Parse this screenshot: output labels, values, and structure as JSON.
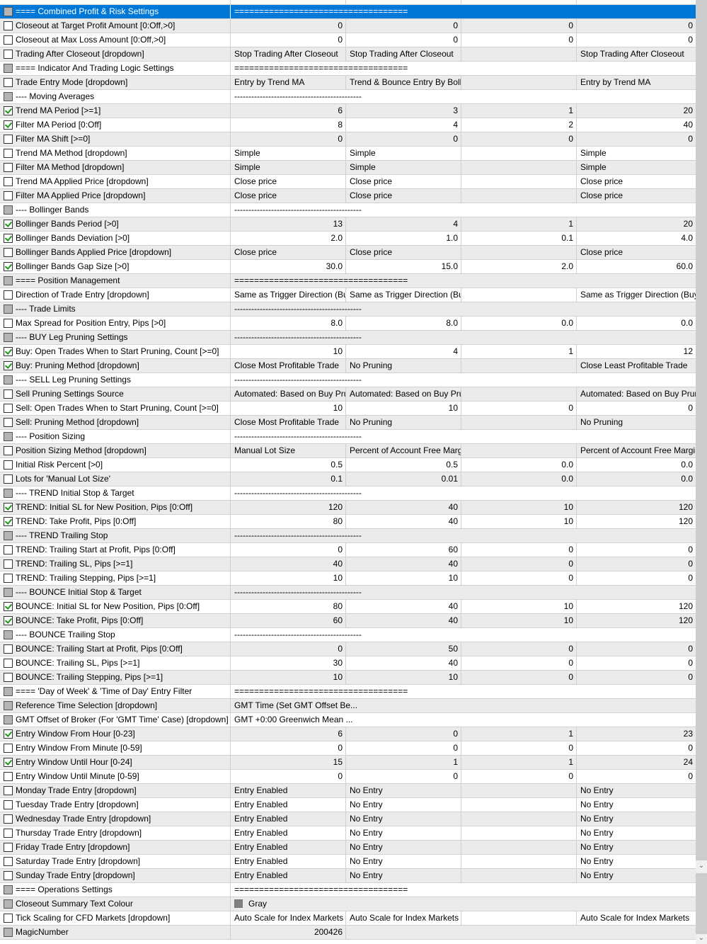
{
  "rows": [
    {
      "label": "==== Combined Profit & Risk Settings",
      "check": "disabled",
      "span": "===================================",
      "selected": true
    },
    {
      "label": "Closeout at Target Profit Amount [0:Off,>0]",
      "check": "unchecked",
      "values": [
        "0",
        "0",
        "0",
        "0"
      ]
    },
    {
      "label": "Closeout at Max Loss Amount [0:Off,>0]",
      "check": "unchecked",
      "values": [
        "0",
        "0",
        "0",
        "0"
      ]
    },
    {
      "label": "Trading After Closeout [dropdown]",
      "check": "unchecked",
      "values": [
        "Stop Trading After Closeout",
        "Stop Trading After Closeout",
        "",
        "Stop Trading After Closeout"
      ]
    },
    {
      "label": "==== Indicator And Trading Logic Settings",
      "check": "disabled",
      "span": "==================================="
    },
    {
      "label": "Trade Entry Mode [dropdown]",
      "check": "unchecked",
      "values": [
        "Entry by Trend MA",
        "Trend & Bounce Entry By Bolli...",
        "",
        "Entry by Trend MA"
      ]
    },
    {
      "label": "---- Moving Averages",
      "check": "disabled",
      "span": "---------------------------------------------"
    },
    {
      "label": "Trend MA Period [>=1]",
      "check": "checked",
      "values": [
        "6",
        "3",
        "1",
        "20"
      ]
    },
    {
      "label": "Filter MA Period [0:Off]",
      "check": "checked",
      "values": [
        "8",
        "4",
        "2",
        "40"
      ]
    },
    {
      "label": "Filter MA Shift [>=0]",
      "check": "unchecked",
      "values": [
        "0",
        "0",
        "0",
        "0"
      ]
    },
    {
      "label": "Trend MA Method [dropdown]",
      "check": "unchecked",
      "values": [
        "Simple",
        "Simple",
        "",
        "Simple"
      ]
    },
    {
      "label": "Filter MA Method [dropdown]",
      "check": "unchecked",
      "values": [
        "Simple",
        "Simple",
        "",
        "Simple"
      ]
    },
    {
      "label": "Trend MA Applied Price [dropdown]",
      "check": "unchecked",
      "values": [
        "Close price",
        "Close price",
        "",
        "Close price"
      ]
    },
    {
      "label": "Filter MA Applied Price [dropdown]",
      "check": "unchecked",
      "values": [
        "Close price",
        "Close price",
        "",
        "Close price"
      ]
    },
    {
      "label": "---- Bollinger Bands",
      "check": "disabled",
      "span": "---------------------------------------------"
    },
    {
      "label": "Bollinger Bands Period [>0]",
      "check": "checked",
      "values": [
        "13",
        "4",
        "1",
        "20"
      ]
    },
    {
      "label": "Bollinger Bands Deviation [>0]",
      "check": "checked",
      "values": [
        "2.0",
        "1.0",
        "0.1",
        "4.0"
      ]
    },
    {
      "label": "Bollinger Bands Applied Price [dropdown]",
      "check": "unchecked",
      "values": [
        "Close price",
        "Close price",
        "",
        "Close price"
      ]
    },
    {
      "label": "Bollinger Bands Gap Size [>0]",
      "check": "checked",
      "values": [
        "30.0",
        "15.0",
        "2.0",
        "60.0"
      ]
    },
    {
      "label": "==== Position Management",
      "check": "disabled",
      "span": "==================================="
    },
    {
      "label": "Direction of Trade Entry [dropdown]",
      "check": "unchecked",
      "values": [
        "Same as Trigger Direction (Buy...",
        "Same as Trigger Direction (Buy...",
        "",
        "Same as Trigger Direction (Buy ..."
      ]
    },
    {
      "label": "---- Trade Limits",
      "check": "disabled",
      "span": "---------------------------------------------"
    },
    {
      "label": "Max Spread for Position Entry, Pips [>0]",
      "check": "unchecked",
      "values": [
        "8.0",
        "8.0",
        "0.0",
        "0.0"
      ]
    },
    {
      "label": "---- BUY Leg Pruning Settings",
      "check": "disabled",
      "span": "---------------------------------------------"
    },
    {
      "label": "Buy: Open Trades When to Start Pruning, Count [>=0]",
      "check": "checked",
      "values": [
        "10",
        "4",
        "1",
        "12"
      ]
    },
    {
      "label": "Buy: Pruning Method [dropdown]",
      "check": "checked",
      "values": [
        "Close Most Profitable Trade",
        "No Pruning",
        "",
        "Close Least Profitable Trade"
      ]
    },
    {
      "label": "---- SELL Leg Pruning Settings",
      "check": "disabled",
      "span": "---------------------------------------------"
    },
    {
      "label": "Sell Pruning Settings Source",
      "check": "unchecked",
      "values": [
        "Automated: Based on Buy Pru...",
        "Automated: Based on Buy Pru...",
        "",
        "Automated: Based on Buy Pruni..."
      ]
    },
    {
      "label": "Sell: Open Trades When to Start Pruning, Count [>=0]",
      "check": "unchecked",
      "values": [
        "10",
        "10",
        "0",
        "0"
      ]
    },
    {
      "label": "Sell: Pruning Method [dropdown]",
      "check": "unchecked",
      "values": [
        "Close Most Profitable Trade",
        "No Pruning",
        "",
        "No Pruning"
      ]
    },
    {
      "label": "---- Position Sizing",
      "check": "disabled",
      "span": "---------------------------------------------"
    },
    {
      "label": "Position Sizing Method [dropdown]",
      "check": "unchecked",
      "values": [
        "Manual Lot Size",
        "Percent of Account Free Margin",
        "",
        "Percent of Account Free Margin"
      ]
    },
    {
      "label": "Initial Risk Percent [>0]",
      "check": "unchecked",
      "values": [
        "0.5",
        "0.5",
        "0.0",
        "0.0"
      ]
    },
    {
      "label": "Lots for 'Manual Lot Size'",
      "check": "unchecked",
      "values": [
        "0.1",
        "0.01",
        "0.0",
        "0.0"
      ]
    },
    {
      "label": "---- TREND Initial Stop & Target",
      "check": "disabled",
      "span": "---------------------------------------------"
    },
    {
      "label": "TREND: Initial SL for New Position, Pips [0:Off]",
      "check": "checked",
      "values": [
        "120",
        "40",
        "10",
        "120"
      ]
    },
    {
      "label": "TREND: Take Profit, Pips [0:Off]",
      "check": "checked",
      "values": [
        "80",
        "40",
        "10",
        "120"
      ]
    },
    {
      "label": "---- TREND Trailing Stop",
      "check": "disabled",
      "span": "---------------------------------------------"
    },
    {
      "label": "TREND: Trailing Start at Profit, Pips [0:Off]",
      "check": "unchecked",
      "values": [
        "0",
        "60",
        "0",
        "0"
      ]
    },
    {
      "label": "TREND: Trailing SL, Pips [>=1]",
      "check": "unchecked",
      "values": [
        "40",
        "40",
        "0",
        "0"
      ]
    },
    {
      "label": "TREND: Trailing Stepping, Pips [>=1]",
      "check": "unchecked",
      "values": [
        "10",
        "10",
        "0",
        "0"
      ]
    },
    {
      "label": "---- BOUNCE Initial Stop & Target",
      "check": "disabled",
      "span": "---------------------------------------------"
    },
    {
      "label": "BOUNCE: Initial SL for New Position, Pips [0:Off]",
      "check": "checked",
      "values": [
        "80",
        "40",
        "10",
        "120"
      ]
    },
    {
      "label": "BOUNCE: Take Profit, Pips [0:Off]",
      "check": "checked",
      "values": [
        "60",
        "40",
        "10",
        "120"
      ]
    },
    {
      "label": "---- BOUNCE Trailing Stop",
      "check": "disabled",
      "span": "---------------------------------------------"
    },
    {
      "label": "BOUNCE: Trailing Start at Profit, Pips [0:Off]",
      "check": "unchecked",
      "values": [
        "0",
        "50",
        "0",
        "0"
      ]
    },
    {
      "label": "BOUNCE: Trailing SL, Pips [>=1]",
      "check": "unchecked",
      "values": [
        "30",
        "40",
        "0",
        "0"
      ]
    },
    {
      "label": "BOUNCE: Trailing Stepping, Pips [>=1]",
      "check": "unchecked",
      "values": [
        "10",
        "10",
        "0",
        "0"
      ]
    },
    {
      "label": "==== 'Day of Week' & 'Time of Day' Entry Filter",
      "check": "disabled",
      "span": "==================================="
    },
    {
      "label": "Reference Time Selection [dropdown]",
      "check": "disabled",
      "span": "GMT Time (Set GMT Offset Be..."
    },
    {
      "label": "GMT Offset of Broker (For 'GMT Time' Case) [dropdown]",
      "check": "disabled",
      "span": "GMT +0:00  Greenwich Mean ..."
    },
    {
      "label": "Entry Window From Hour [0-23]",
      "check": "checked",
      "values": [
        "6",
        "0",
        "1",
        "23"
      ]
    },
    {
      "label": "Entry Window From Minute [0-59]",
      "check": "unchecked",
      "values": [
        "0",
        "0",
        "0",
        "0"
      ]
    },
    {
      "label": "Entry Window Until Hour [0-24]",
      "check": "checked",
      "values": [
        "15",
        "1",
        "1",
        "24"
      ]
    },
    {
      "label": "Entry Window Until Minute [0-59]",
      "check": "unchecked",
      "values": [
        "0",
        "0",
        "0",
        "0"
      ]
    },
    {
      "label": "Monday Trade Entry [dropdown]",
      "check": "unchecked",
      "values": [
        "Entry Enabled",
        "No Entry",
        "",
        "No Entry"
      ]
    },
    {
      "label": "Tuesday Trade Entry [dropdown]",
      "check": "unchecked",
      "values": [
        "Entry Enabled",
        "No Entry",
        "",
        "No Entry"
      ]
    },
    {
      "label": "Wednesday Trade Entry [dropdown]",
      "check": "unchecked",
      "values": [
        "Entry Enabled",
        "No Entry",
        "",
        "No Entry"
      ]
    },
    {
      "label": "Thursday Trade Entry [dropdown]",
      "check": "unchecked",
      "values": [
        "Entry Enabled",
        "No Entry",
        "",
        "No Entry"
      ]
    },
    {
      "label": "Friday Trade Entry [dropdown]",
      "check": "unchecked",
      "values": [
        "Entry Enabled",
        "No Entry",
        "",
        "No Entry"
      ]
    },
    {
      "label": "Saturday Trade Entry [dropdown]",
      "check": "unchecked",
      "values": [
        "Entry Enabled",
        "No Entry",
        "",
        "No Entry"
      ]
    },
    {
      "label": "Sunday Trade Entry [dropdown]",
      "check": "unchecked",
      "values": [
        "Entry Enabled",
        "No Entry",
        "",
        "No Entry"
      ]
    },
    {
      "label": "==== Operations Settings",
      "check": "disabled",
      "span": "==================================="
    },
    {
      "label": "Closeout Summary Text Colour",
      "check": "disabled",
      "span": "Gray",
      "swatch": "#808080"
    },
    {
      "label": "Tick Scaling for CFD Markets [dropdown]",
      "check": "unchecked",
      "values": [
        "Auto Scale for Index Markets",
        "Auto Scale for Index Markets",
        "",
        "Auto Scale for Index Markets"
      ]
    },
    {
      "label": "MagicNumber",
      "check": "disabled",
      "single": "200426"
    }
  ],
  "colors": {
    "selection": "#0078d7",
    "alt_row": "#ebebeb",
    "check": "#1a9a1a"
  }
}
